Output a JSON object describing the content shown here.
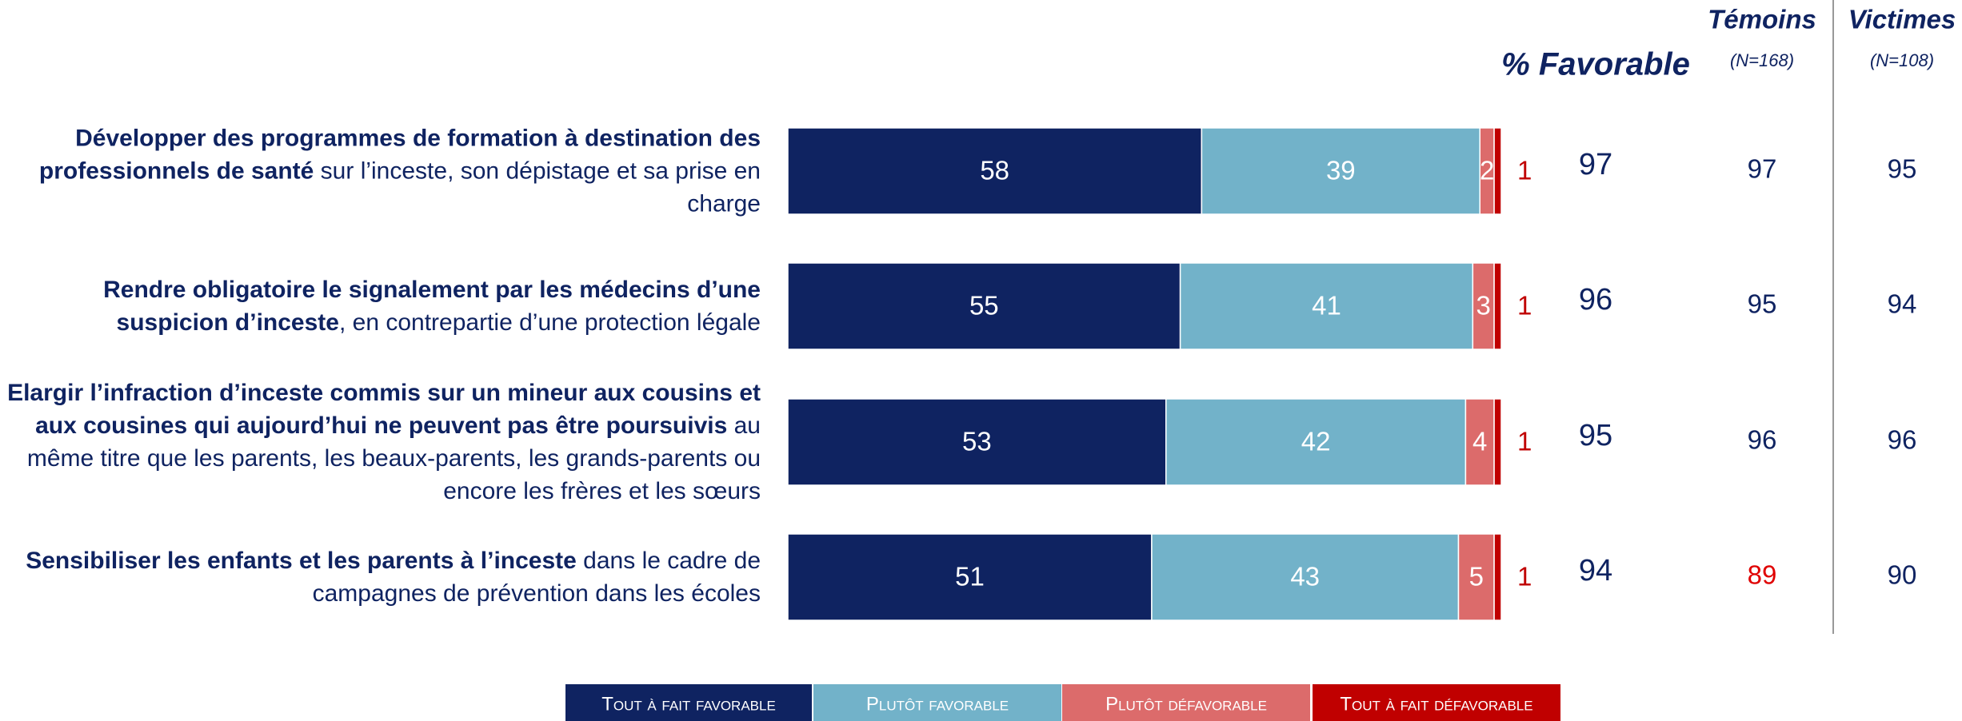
{
  "chart_data": {
    "type": "bar",
    "orientation": "horizontal",
    "stacked": true,
    "xlim": [
      0,
      100
    ],
    "categories": [
      {
        "strong": "Développer des programmes de formation à destination des professionnels de santé",
        "rest": " sur l’inceste, son dépistage et sa prise en charge"
      },
      {
        "strong": "Rendre obligatoire le signalement par les médecins d’une suspicion d’inceste",
        "rest": ", en contrepartie d’une protection légale"
      },
      {
        "strong": "Elargir l’infraction d’inceste commis sur un mineur aux cousins et aux cousines qui aujourd’hui ne peuvent pas être poursuivis",
        "rest": " au même titre que les parents, les beaux-parents, les grands-parents ou encore les frères et les sœurs"
      },
      {
        "strong": "Sensibiliser les enfants et les parents à l’inceste",
        "rest": " dans le cadre de campagnes de prévention dans les écoles"
      }
    ],
    "series": [
      {
        "name": "Tout à fait favorable",
        "color": "#0f2361",
        "values": [
          58,
          55,
          53,
          51
        ]
      },
      {
        "name": "Plutôt favorable",
        "color": "#72b2c9",
        "values": [
          39,
          41,
          42,
          43
        ]
      },
      {
        "name": "Plutôt défavorable",
        "color": "#dc6b6b",
        "values": [
          2,
          3,
          4,
          5
        ]
      },
      {
        "name": "Tout à fait défavorable",
        "color": "#c00000",
        "values": [
          1,
          1,
          1,
          1
        ]
      }
    ],
    "columns": [
      {
        "title": "% Favorable",
        "values": [
          97,
          96,
          95,
          94
        ],
        "colors": [
          "#0f2361",
          "#0f2361",
          "#0f2361",
          "#0f2361"
        ]
      },
      {
        "title": "Témoins",
        "subtitle": "(N=168)",
        "values": [
          97,
          95,
          96,
          89
        ],
        "colors": [
          "#0f2361",
          "#0f2361",
          "#0f2361",
          "#e00000"
        ]
      },
      {
        "title": "Victimes",
        "subtitle": "(N=108)",
        "values": [
          95,
          94,
          96,
          90
        ],
        "colors": [
          "#0f2361",
          "#0f2361",
          "#0f2361",
          "#0f2361"
        ]
      }
    ]
  }
}
